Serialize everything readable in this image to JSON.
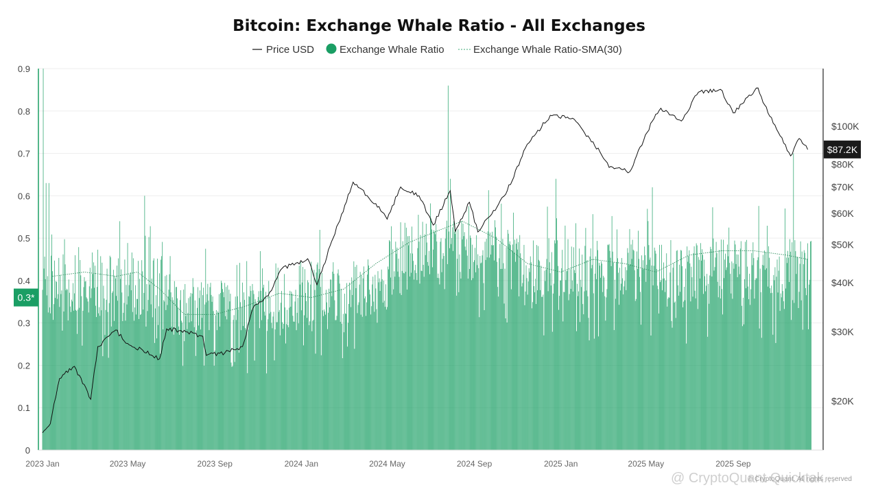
{
  "chart_data": {
    "type": "bar",
    "title": "Bitcoin: Exchange Whale Ratio - All Exchanges",
    "legend": {
      "placement": "top-center",
      "items": [
        {
          "label": "Price USD",
          "kind": "line",
          "color": "#111111"
        },
        {
          "label": "Exchange Whale Ratio",
          "kind": "dot",
          "color": "#1a9e64"
        },
        {
          "label": "Exchange Whale Ratio-SMA(30)",
          "kind": "dotted-line",
          "color": "#3aa874"
        }
      ]
    },
    "x_axis": {
      "type": "date",
      "range": [
        "2023-01-01",
        "2025-12-31"
      ],
      "ticks": [
        {
          "label": "2023 Jan",
          "date": "2023-01-01"
        },
        {
          "label": "2023 May",
          "date": "2023-05-01"
        },
        {
          "label": "2023 Sep",
          "date": "2023-09-01"
        },
        {
          "label": "2024 Jan",
          "date": "2024-01-01"
        },
        {
          "label": "2024 May",
          "date": "2024-05-01"
        },
        {
          "label": "2024 Sep",
          "date": "2024-09-01"
        },
        {
          "label": "2025 Jan",
          "date": "2025-01-01"
        },
        {
          "label": "2025 May",
          "date": "2025-05-01"
        },
        {
          "label": "2025 Sep",
          "date": "2025-09-01"
        }
      ]
    },
    "y_axis_left": {
      "range": [
        0,
        0.9
      ],
      "ticks": [
        "0",
        "0.1",
        "0.2",
        "0.3",
        "0.4",
        "0.5",
        "0.6",
        "0.7",
        "0.8",
        "0.9"
      ],
      "current_marker": "0.3*",
      "current_value": 0.36
    },
    "y_axis_right": {
      "scale": "log",
      "range": [
        15000,
        140000
      ],
      "ticks": [
        {
          "label": "$20K",
          "value": 20000
        },
        {
          "label": "$30K",
          "value": 30000
        },
        {
          "label": "$40K",
          "value": 40000
        },
        {
          "label": "$50K",
          "value": 50000
        },
        {
          "label": "$60K",
          "value": 60000
        },
        {
          "label": "$70K",
          "value": 70000
        },
        {
          "label": "$80K",
          "value": 80000
        },
        {
          "label": "$100K",
          "value": 100000
        }
      ],
      "current_marker": "$87.2K",
      "current_value": 87200
    },
    "grid": true,
    "series": [
      {
        "name": "Exchange Whale Ratio",
        "type": "bar",
        "color": "#1a9e64",
        "frequency": "daily",
        "approx_level_by_period": [
          {
            "start": "2023-01-01",
            "end": "2023-06-30",
            "typical": [
              0.3,
              0.46
            ]
          },
          {
            "start": "2023-07-01",
            "end": "2023-12-31",
            "typical": [
              0.28,
              0.4
            ]
          },
          {
            "start": "2024-01-01",
            "end": "2024-04-30",
            "typical": [
              0.3,
              0.45
            ]
          },
          {
            "start": "2024-05-01",
            "end": "2024-10-31",
            "typical": [
              0.4,
              0.55
            ]
          },
          {
            "start": "2024-11-01",
            "end": "2025-12-31",
            "typical": [
              0.35,
              0.5
            ]
          }
        ],
        "spikes": [
          {
            "date": "2023-01-02",
            "value": 0.9
          },
          {
            "date": "2023-01-06",
            "value": 0.63
          },
          {
            "date": "2023-01-10",
            "value": 0.63
          },
          {
            "date": "2023-05-25",
            "value": 0.6
          },
          {
            "date": "2023-04-20",
            "value": 0.54
          },
          {
            "date": "2024-07-26",
            "value": 0.86
          },
          {
            "date": "2024-07-29",
            "value": 0.64
          },
          {
            "date": "2024-12-25",
            "value": 0.64
          },
          {
            "date": "2025-05-10",
            "value": 0.62
          },
          {
            "date": "2025-11-25",
            "value": 0.7
          }
        ]
      },
      {
        "name": "Exchange Whale Ratio-SMA(30)",
        "type": "line",
        "style": "dotted",
        "color": "#3aa874",
        "points": [
          {
            "date": "2023-01-15",
            "value": 0.41
          },
          {
            "date": "2023-03-01",
            "value": 0.42
          },
          {
            "date": "2023-04-15",
            "value": 0.41
          },
          {
            "date": "2023-05-15",
            "value": 0.42
          },
          {
            "date": "2023-06-15",
            "value": 0.38
          },
          {
            "date": "2023-07-20",
            "value": 0.32
          },
          {
            "date": "2023-09-01",
            "value": 0.32
          },
          {
            "date": "2023-10-15",
            "value": 0.34
          },
          {
            "date": "2023-12-01",
            "value": 0.37
          },
          {
            "date": "2024-01-15",
            "value": 0.36
          },
          {
            "date": "2024-03-01",
            "value": 0.38
          },
          {
            "date": "2024-04-15",
            "value": 0.44
          },
          {
            "date": "2024-06-01",
            "value": 0.49
          },
          {
            "date": "2024-07-15",
            "value": 0.52
          },
          {
            "date": "2024-08-15",
            "value": 0.54
          },
          {
            "date": "2024-10-01",
            "value": 0.5
          },
          {
            "date": "2024-11-15",
            "value": 0.44
          },
          {
            "date": "2025-01-01",
            "value": 0.42
          },
          {
            "date": "2025-02-15",
            "value": 0.45
          },
          {
            "date": "2025-04-01",
            "value": 0.44
          },
          {
            "date": "2025-05-15",
            "value": 0.42
          },
          {
            "date": "2025-07-01",
            "value": 0.46
          },
          {
            "date": "2025-08-15",
            "value": 0.47
          },
          {
            "date": "2025-10-01",
            "value": 0.47
          },
          {
            "date": "2025-11-15",
            "value": 0.46
          },
          {
            "date": "2025-12-15",
            "value": 0.45
          }
        ]
      },
      {
        "name": "Price USD",
        "type": "line",
        "color": "#111111",
        "axis": "right",
        "points": [
          {
            "date": "2023-01-01",
            "value": 16600
          },
          {
            "date": "2023-01-12",
            "value": 17500
          },
          {
            "date": "2023-01-25",
            "value": 22800
          },
          {
            "date": "2023-02-15",
            "value": 24500
          },
          {
            "date": "2023-03-10",
            "value": 20200
          },
          {
            "date": "2023-03-20",
            "value": 27500
          },
          {
            "date": "2023-04-14",
            "value": 30300
          },
          {
            "date": "2023-05-01",
            "value": 28000
          },
          {
            "date": "2023-06-15",
            "value": 25600
          },
          {
            "date": "2023-06-25",
            "value": 30500
          },
          {
            "date": "2023-07-15",
            "value": 30200
          },
          {
            "date": "2023-08-15",
            "value": 29200
          },
          {
            "date": "2023-08-20",
            "value": 26100
          },
          {
            "date": "2023-09-15",
            "value": 26500
          },
          {
            "date": "2023-10-10",
            "value": 27500
          },
          {
            "date": "2023-10-25",
            "value": 34500
          },
          {
            "date": "2023-11-15",
            "value": 37000
          },
          {
            "date": "2023-12-05",
            "value": 43500
          },
          {
            "date": "2024-01-10",
            "value": 46000
          },
          {
            "date": "2024-01-23",
            "value": 39500
          },
          {
            "date": "2024-02-15",
            "value": 52000
          },
          {
            "date": "2024-03-14",
            "value": 72000
          },
          {
            "date": "2024-04-15",
            "value": 63500
          },
          {
            "date": "2024-05-01",
            "value": 58000
          },
          {
            "date": "2024-05-20",
            "value": 70000
          },
          {
            "date": "2024-06-15",
            "value": 66500
          },
          {
            "date": "2024-07-05",
            "value": 56000
          },
          {
            "date": "2024-07-29",
            "value": 68500
          },
          {
            "date": "2024-08-05",
            "value": 54000
          },
          {
            "date": "2024-08-25",
            "value": 64000
          },
          {
            "date": "2024-09-06",
            "value": 53800
          },
          {
            "date": "2024-10-15",
            "value": 67000
          },
          {
            "date": "2024-11-12",
            "value": 88000
          },
          {
            "date": "2024-12-17",
            "value": 106500
          },
          {
            "date": "2025-01-20",
            "value": 104000
          },
          {
            "date": "2025-02-25",
            "value": 86000
          },
          {
            "date": "2025-03-10",
            "value": 78500
          },
          {
            "date": "2025-04-08",
            "value": 76500
          },
          {
            "date": "2025-05-10",
            "value": 103000
          },
          {
            "date": "2025-05-22",
            "value": 111000
          },
          {
            "date": "2025-06-20",
            "value": 103000
          },
          {
            "date": "2025-07-14",
            "value": 122000
          },
          {
            "date": "2025-08-14",
            "value": 124000
          },
          {
            "date": "2025-09-01",
            "value": 108000
          },
          {
            "date": "2025-10-06",
            "value": 125000
          },
          {
            "date": "2025-10-20",
            "value": 108000
          },
          {
            "date": "2025-11-21",
            "value": 84000
          },
          {
            "date": "2025-12-03",
            "value": 93000
          },
          {
            "date": "2025-12-15",
            "value": 87200
          }
        ]
      }
    ]
  },
  "watermark": {
    "text": "@ CryptoQuant Quicktak...",
    "small_text": "© CryptoQuant. All rights reserved"
  }
}
